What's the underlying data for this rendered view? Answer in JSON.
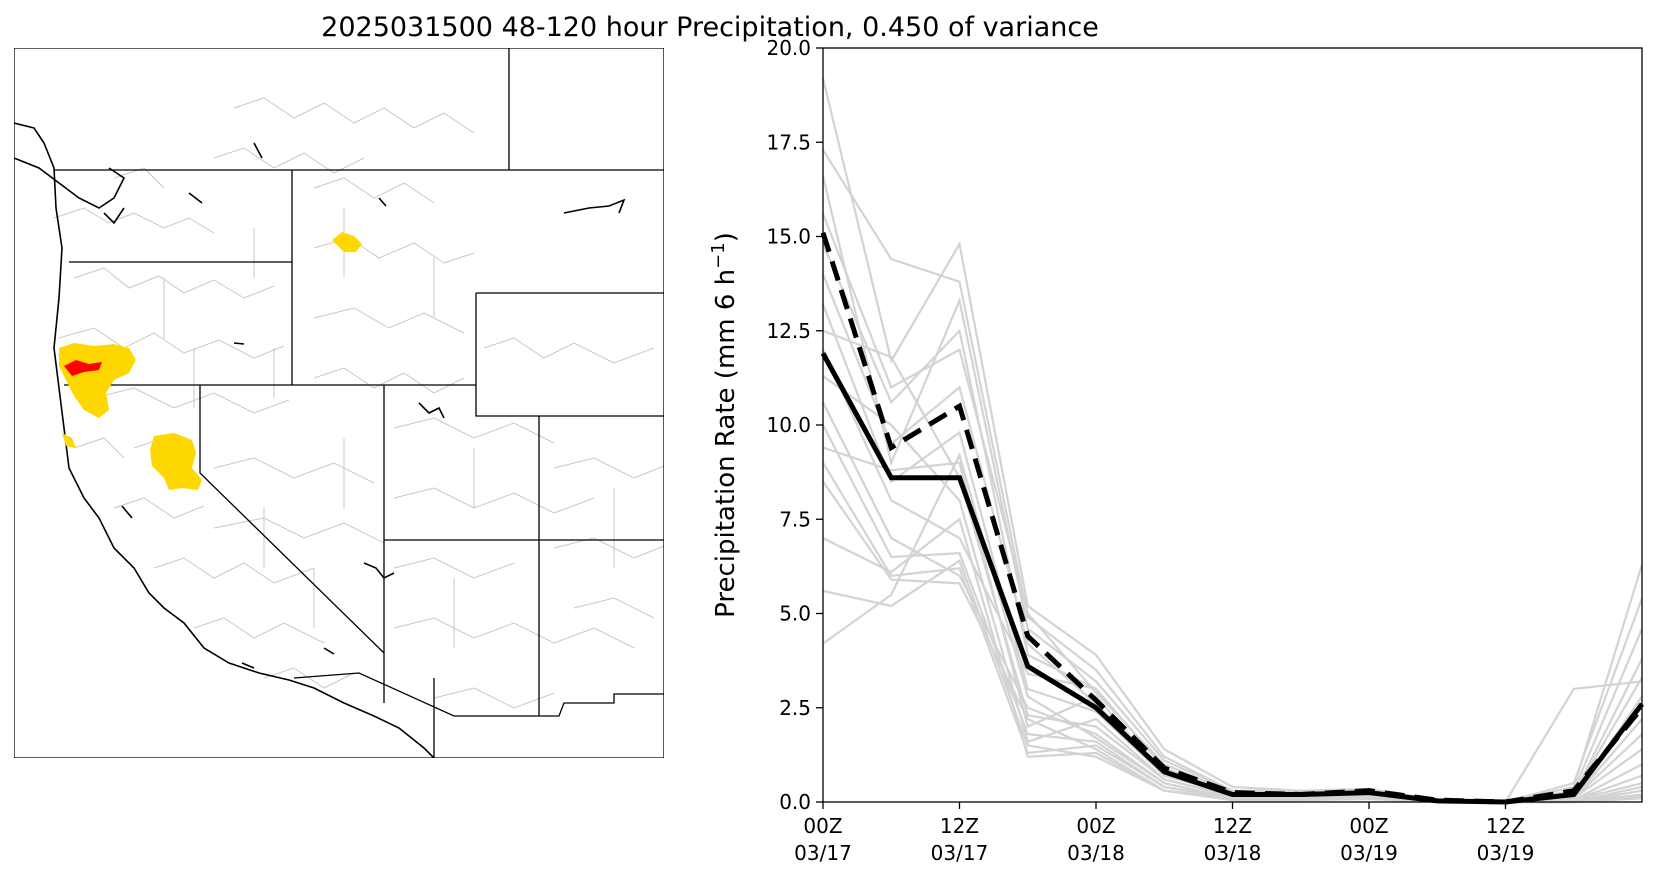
{
  "title": "2025031500 48-120 hour Precipitation, 0.450 of variance",
  "map": {
    "colors": {
      "land_border": "#000000",
      "basin_line": "#c8c8c8",
      "highlight_high": "#ff0000",
      "highlight_mid": "#ffd700"
    }
  },
  "chart_data": {
    "type": "line",
    "title": "",
    "xlabel": "",
    "ylabel": "Precipitation Rate (mm 6 h",
    "ylabel_sup": "−1",
    "ylabel_close": ")",
    "ylim": [
      0,
      20
    ],
    "xlim": [
      0,
      18
    ],
    "yticks": [
      "0.0",
      "2.5",
      "5.0",
      "7.5",
      "10.0",
      "12.5",
      "15.0",
      "17.5",
      "20.0"
    ],
    "ytick_values": [
      0,
      2.5,
      5,
      7.5,
      10,
      12.5,
      15,
      17.5,
      20
    ],
    "xticks": [
      {
        "x": 0,
        "line1": "00Z",
        "line2": "03/17"
      },
      {
        "x": 3,
        "line1": "12Z",
        "line2": "03/17"
      },
      {
        "x": 6,
        "line1": "00Z",
        "line2": "03/18"
      },
      {
        "x": 9,
        "line1": "12Z",
        "line2": "03/18"
      },
      {
        "x": 12,
        "line1": "00Z",
        "line2": "03/19"
      },
      {
        "x": 15,
        "line1": "12Z",
        "line2": "03/19"
      }
    ],
    "x": [
      0,
      1.5,
      3,
      4.5,
      6,
      7.5,
      9,
      10.5,
      12,
      13.5,
      15,
      16.5,
      18
    ],
    "series": [
      {
        "style": "solid-black",
        "color": "#000000",
        "values": [
          11.9,
          8.6,
          8.6,
          3.6,
          2.5,
          0.8,
          0.2,
          0.2,
          0.25,
          0.03,
          0.0,
          0.2,
          2.6
        ]
      },
      {
        "style": "dashed-black",
        "color": "#000000",
        "values": [
          15.1,
          9.4,
          10.5,
          4.4,
          2.7,
          0.9,
          0.25,
          0.2,
          0.3,
          0.05,
          0.0,
          0.3,
          2.5
        ]
      }
    ],
    "members": {
      "color": "#d3d3d3",
      "values": [
        [
          19.2,
          11.7,
          14.8,
          5.2,
          3.9,
          1.4,
          0.4,
          0.3,
          0.3,
          0.05,
          0.0,
          0.4,
          6.3
        ],
        [
          17.3,
          14.4,
          13.8,
          4.9,
          3.5,
          1.2,
          0.3,
          0.3,
          0.35,
          0.04,
          0.0,
          3.0,
          3.2
        ],
        [
          16.6,
          9.0,
          13.3,
          4.6,
          3.2,
          1.1,
          0.3,
          0.25,
          0.3,
          0.03,
          0.0,
          0.5,
          5.4
        ],
        [
          15.6,
          11.0,
          12.0,
          5.0,
          2.9,
          1.0,
          0.25,
          0.2,
          0.28,
          0.03,
          0.0,
          0.3,
          4.6
        ],
        [
          14.8,
          10.6,
          12.5,
          3.9,
          3.0,
          0.9,
          0.2,
          0.2,
          0.25,
          0.02,
          0.0,
          0.2,
          3.8
        ],
        [
          14.0,
          9.5,
          11.0,
          4.2,
          2.6,
          0.8,
          0.2,
          0.18,
          0.22,
          0.02,
          0.0,
          0.2,
          3.3
        ],
        [
          13.2,
          8.5,
          9.8,
          3.0,
          2.4,
          0.7,
          0.2,
          0.15,
          0.2,
          0.02,
          0.0,
          0.15,
          2.8
        ],
        [
          12.5,
          11.8,
          8.6,
          2.3,
          2.0,
          0.6,
          0.15,
          0.15,
          0.2,
          0.02,
          0.0,
          0.1,
          2.2
        ],
        [
          12.0,
          8.0,
          7.0,
          3.4,
          3.0,
          0.9,
          0.2,
          0.2,
          0.2,
          0.02,
          0.0,
          0.1,
          1.8
        ],
        [
          11.3,
          10.0,
          8.0,
          1.6,
          2.2,
          0.6,
          0.15,
          0.15,
          0.18,
          0.02,
          0.0,
          0.1,
          1.4
        ],
        [
          10.6,
          7.0,
          6.0,
          2.5,
          1.8,
          0.5,
          0.1,
          0.1,
          0.15,
          0.01,
          0.0,
          0.05,
          1.0
        ],
        [
          10.0,
          6.5,
          6.6,
          1.8,
          1.6,
          0.4,
          0.1,
          0.1,
          0.12,
          0.01,
          0.0,
          0.05,
          0.7
        ],
        [
          9.4,
          8.8,
          9.0,
          2.0,
          2.8,
          0.7,
          0.2,
          0.2,
          0.2,
          0.02,
          0.0,
          0.05,
          0.5
        ],
        [
          9.0,
          6.0,
          6.2,
          1.3,
          1.5,
          0.4,
          0.1,
          0.1,
          0.1,
          0.01,
          0.0,
          0.0,
          0.4
        ],
        [
          8.5,
          5.9,
          5.8,
          2.2,
          1.4,
          0.3,
          0.1,
          0.1,
          0.1,
          0.01,
          0.0,
          0.0,
          0.3
        ],
        [
          7.0,
          6.1,
          7.5,
          1.2,
          1.3,
          0.3,
          0.1,
          0.08,
          0.1,
          0.0,
          0.0,
          0.0,
          0.2
        ],
        [
          5.6,
          5.2,
          6.4,
          1.5,
          1.2,
          0.3,
          0.05,
          0.05,
          0.08,
          0.0,
          0.0,
          0.0,
          0.15
        ],
        [
          4.2,
          5.5,
          9.2,
          2.8,
          1.7,
          0.5,
          0.1,
          0.1,
          0.1,
          0.01,
          0.0,
          0.0,
          0.1
        ]
      ]
    }
  }
}
